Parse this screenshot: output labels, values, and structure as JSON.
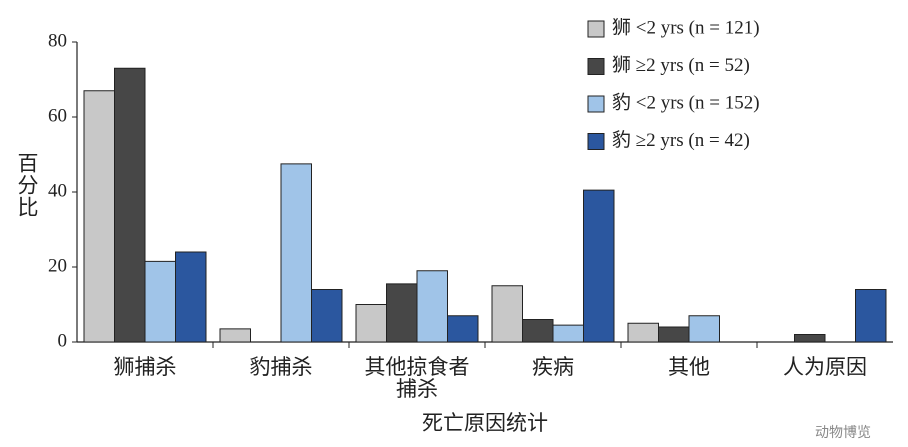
{
  "chart_data": {
    "type": "bar",
    "y_label": "百分比",
    "x_label": "死亡原因统计",
    "watermark": "动物博览",
    "categories": [
      "狮捕杀",
      "豹捕杀",
      "其他掠食者\n捕杀",
      "疾病",
      "其他",
      "人为原因"
    ],
    "series": [
      {
        "name": "狮 <2 yrs (n = 121)",
        "color": "#c8c8c8",
        "values": [
          67,
          3.5,
          10,
          15,
          5,
          0
        ]
      },
      {
        "name": "狮 ≥2 yrs (n = 52)",
        "color": "#474747",
        "values": [
          73,
          0,
          15.5,
          6,
          4,
          2
        ]
      },
      {
        "name": "豹 <2 yrs (n = 152)",
        "color": "#a0c4e8",
        "values": [
          21.5,
          47.5,
          19,
          4.5,
          7,
          0
        ]
      },
      {
        "name": "豹 ≥2 yrs (n = 42)",
        "color": "#2b579f",
        "values": [
          24,
          14,
          7,
          40.5,
          0,
          14
        ]
      }
    ],
    "ylim": [
      0,
      80
    ],
    "yticks": [
      0,
      20,
      40,
      60,
      80
    ],
    "grid": false,
    "legend": "top-right"
  }
}
